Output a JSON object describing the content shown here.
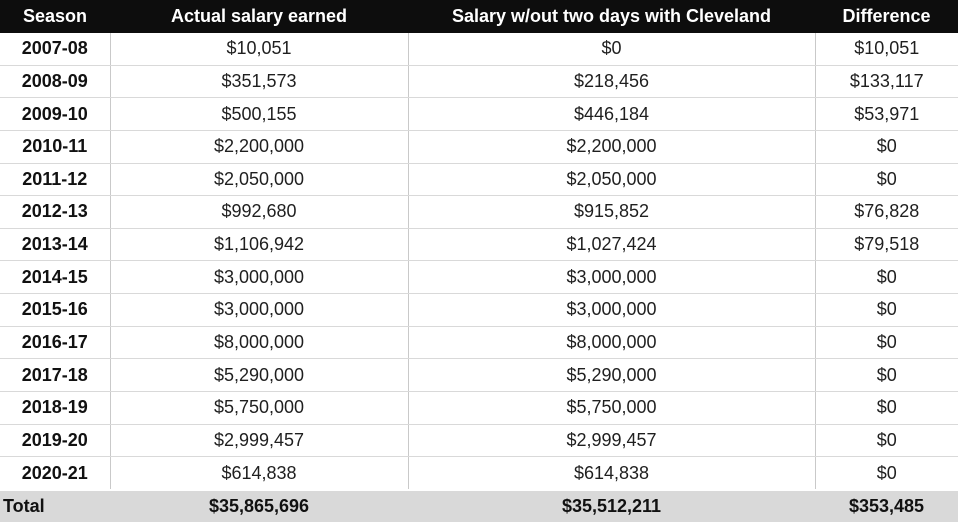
{
  "chart_data": {
    "type": "table",
    "columns": [
      "Season",
      "Actual salary earned",
      "Salary w/out two days with Cleveland",
      "Difference"
    ],
    "rows": [
      {
        "season": "2007-08",
        "actual": "$10,051",
        "without": "$0",
        "difference": "$10,051"
      },
      {
        "season": "2008-09",
        "actual": "$351,573",
        "without": "$218,456",
        "difference": "$133,117"
      },
      {
        "season": "2009-10",
        "actual": "$500,155",
        "without": "$446,184",
        "difference": "$53,971"
      },
      {
        "season": "2010-11",
        "actual": "$2,200,000",
        "without": "$2,200,000",
        "difference": "$0"
      },
      {
        "season": "2011-12",
        "actual": "$2,050,000",
        "without": "$2,050,000",
        "difference": "$0"
      },
      {
        "season": "2012-13",
        "actual": "$992,680",
        "without": "$915,852",
        "difference": "$76,828"
      },
      {
        "season": "2013-14",
        "actual": "$1,106,942",
        "without": "$1,027,424",
        "difference": "$79,518"
      },
      {
        "season": "2014-15",
        "actual": "$3,000,000",
        "without": "$3,000,000",
        "difference": "$0"
      },
      {
        "season": "2015-16",
        "actual": "$3,000,000",
        "without": "$3,000,000",
        "difference": "$0"
      },
      {
        "season": "2016-17",
        "actual": "$8,000,000",
        "without": "$8,000,000",
        "difference": "$0"
      },
      {
        "season": "2017-18",
        "actual": "$5,290,000",
        "without": "$5,290,000",
        "difference": "$0"
      },
      {
        "season": "2018-19",
        "actual": "$5,750,000",
        "without": "$5,750,000",
        "difference": "$0"
      },
      {
        "season": "2019-20",
        "actual": "$2,999,457",
        "without": "$2,999,457",
        "difference": "$0"
      },
      {
        "season": "2020-21",
        "actual": "$614,838",
        "without": "$614,838",
        "difference": "$0"
      }
    ],
    "total": {
      "label": "Total",
      "actual": "$35,865,696",
      "without": "$35,512,211",
      "difference": "$353,485"
    }
  },
  "colors": {
    "header_bg": "#0d0d0d",
    "header_text": "#ffffff",
    "total_row_bg": "#d9d9d9",
    "grid_line": "#c9c9c9",
    "body_text": "#1f1f1f"
  }
}
